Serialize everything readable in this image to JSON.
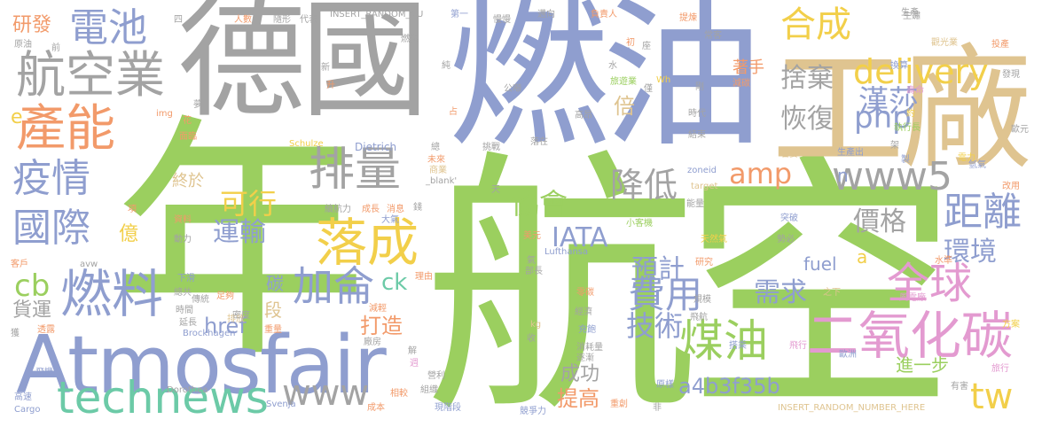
{
  "palette": {
    "green": "#9bcf5f",
    "gray": "#a3a3a3",
    "blue": "#8f9ecf",
    "tan": "#dfc490",
    "orange": "#f29a6a",
    "teal": "#6ccaa7",
    "yellow": "#f2cf4a",
    "pink": "#e39ad0"
  },
  "words": {
    "hang_kong": "航空",
    "nian": "年",
    "de_guo": "德國",
    "ran_you": "燃油",
    "gong_chang": "工廠",
    "atmosfair": "Atmosfair",
    "hang_kong_ye": "航空業",
    "dian_chi": "電池",
    "chan_neng": "產能",
    "yi_qing": "疫情",
    "pai_liang": "排量",
    "guo_ji": "國際",
    "ran_liao": "燃料",
    "luo_cheng": "落成",
    "jia_lun": "加侖",
    "technews": "technews",
    "www": "www",
    "www5": "www5",
    "delivery": "delivery",
    "php": "php",
    "he_cheng": "合成",
    "han_sha": "漢莎",
    "she_qi": "捨棄",
    "hui_fu": "恢復",
    "bei": "倍",
    "jiang_di": "降低",
    "ke_xing": "可行",
    "xie_hui": "協會",
    "amp": "amp",
    "ju_li": "距離",
    "huan_jing": "環境",
    "quan_qiu": "全球",
    "er_yang_hua_tan": "二氧化碳",
    "mei_you": "煤油",
    "fei_yong": "費用",
    "ji_shu": "技術",
    "xu_qiu": "需求",
    "jia_ge": "價格",
    "yu_ji": "預計",
    "iata": "IATA",
    "yun_shu": "運輸",
    "cb": "cb",
    "ck": "ck",
    "tw": "tw",
    "yan_fa": "研發",
    "huo_yun": "貨運",
    "yi": "億",
    "zhong_yu": "終於",
    "tan": "碳",
    "href": "href",
    "da_zao": "打造",
    "ti_gao": "提高",
    "cheng_gong": "成功",
    "a4b3f35b": "a4b3f35b",
    "jin_yi_bu": "進一步",
    "fuel": "fuel",
    "a": "a",
    "n": "n",
    "e": "e",
    "zhu_shou": "著手",
    "duan": "段",
    "insert_rand1": "INSERT_RANDOM_NU",
    "insert_rand2": "INSERT_RANDOM_NUMBER_HERE",
    "brockhagen": "Brockhagen",
    "dietrich": "Dietrich",
    "schulze": "Schulze",
    "svenja": "Svenja",
    "dorothea": "Dorothea",
    "lufthansa": "Lufthansa",
    "cargo": "Cargo",
    "zoneid": "zoneid",
    "target": "target",
    "blank": "_blank'",
    "img": "img",
    "avw": "avw",
    "src": "src",
    "wh": "Wh",
    "yuan_you": "原油",
    "ke_hu": "客戶",
    "tou_qi": "透露",
    "huo": "獲",
    "gao_su": "高速",
    "fei_ji": "飛機",
    "cheng_ben": "成本",
    "xiang_jiao": "相較",
    "xian_jie_duan": "現階段",
    "zu_zhi": "組織",
    "ying_li": "營利",
    "jing_zheng_li": "競爭力",
    "chong_chuang": "重創",
    "yuan_yang": "原樣",
    "lv_xing": "旅行",
    "you_hai": "有害",
    "ou_zhou": "歐洲",
    "fei_xing": "飛行",
    "feng_dian_chang": "風電廠",
    "fang_an": "方案",
    "shui_zhun": "水準",
    "zhi_xia": "之下",
    "gai_yong": "改用",
    "qing_qi": "氫氣",
    "dian_li": "電力",
    "tou_chan": "投產",
    "fa_xian": "發現",
    "ou_yuan": "歐元",
    "guan_guang_ke": "觀光業",
    "shou_ming": "壽命",
    "zhi_xing_zhang": "執行長",
    "jia": "架",
    "yue": "約",
    "shi_dai": "時代",
    "jie_shu": "結束",
    "jian_tan": "減碳",
    "fei_hang": "飛航",
    "gui_mo": "規模",
    "xi_fang": "排放",
    "chong_liang": "重量",
    "mi_du": "密度",
    "yan_chang": "延長",
    "shi_jian": "時間",
    "zu_gou": "足夠",
    "chuan_tong": "傳統",
    "zong_gong": "總共",
    "xia_hua": "下滑",
    "zi_liao": "資料",
    "dong_li": "動力",
    "xu_hang_li": "續航力",
    "cheng_zhang": "成長",
    "xiao_xi": "消息",
    "qian": "錢",
    "da_qi": "大氣",
    "shang_ye": "商業",
    "wei_lai": "未來",
    "tiao_zhan": "挑戰",
    "zong": "總",
    "luo_zai": "落在",
    "gao_ang": "高昂",
    "gong_dun": "公噸",
    "lv_you_ye": "旅遊業",
    "xiao_hao_liang": "消耗量",
    "zhu_jian": "逐漸",
    "chong_dian": "充飽",
    "jing_ji": "經濟",
    "ling_tan": "零碳",
    "yan_jiu": "研究",
    "tian_ran_qi": "天然氣",
    "shi_bi": "勢必",
    "da_ke_ji": "小客機",
    "bu_chang": "部長",
    "mei_yuan": "美元",
    "neng_liang": "能量",
    "tu_po": "突破",
    "da_zai": "搭乘",
    "chang_ke": "常客",
    "sheng_chan_chu": "生產出",
    "zhi": "製",
    "ruo_yao": "若要",
    "sheng_mang": "生鏽",
    "huan_suan": "換算",
    "fu_ze_ren": "負責人",
    "ti_lian": "提煉",
    "tui_xiang": "邁向",
    "di_yi": "第一",
    "man_man": "慢慢",
    "sui_xing": "隨形",
    "dai_biao": "代表",
    "ren_shu": "人數",
    "si": "四",
    "meng": "夢",
    "hua": "花",
    "mian_lin": "面臨",
    "sheng": "升",
    "xin": "新",
    "qian_2": "前",
    "ran_mei": "燃煤",
    "chun": "純",
    "jian_qing": "減輕",
    "li_you": "理由",
    "chang_fang": "廠房",
    "zhan": "占",
    "shui": "水",
    "zuo": "座",
    "chu": "初",
    "shao": "稍",
    "pi_qi": "啟",
    "shou": "收",
    "qi": "氣",
    "fei": "非",
    "tian": "天",
    "zhou": "週",
    "jie": "解",
    "xiang": "項",
    "kg": "kg",
    "sheng_chan": "生產",
    "xiang_ling": "聯",
    "jin": "僅",
    "guo": "過",
    "gang": "剛"
  }
}
